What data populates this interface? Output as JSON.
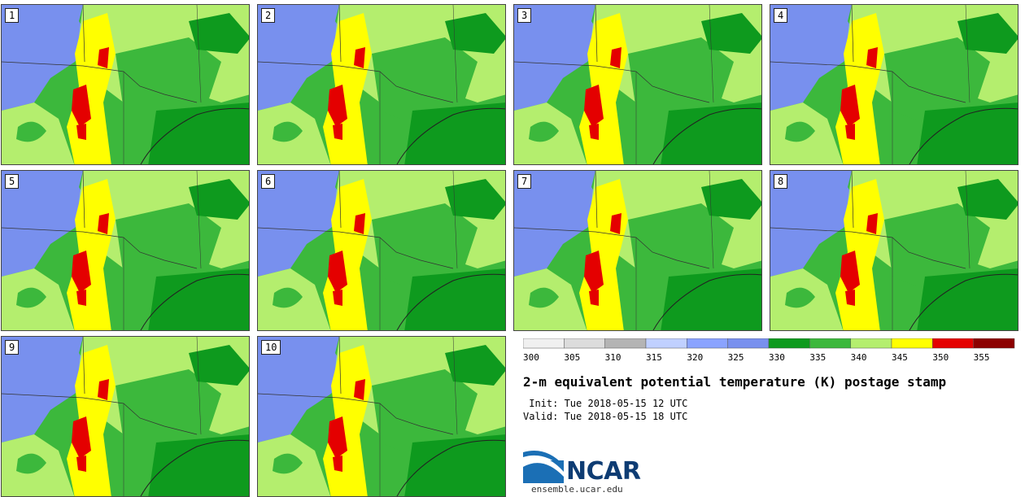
{
  "panels": [
    {
      "label": "1"
    },
    {
      "label": "2"
    },
    {
      "label": "3"
    },
    {
      "label": "4"
    },
    {
      "label": "5"
    },
    {
      "label": "6"
    },
    {
      "label": "7"
    },
    {
      "label": "8"
    },
    {
      "label": "9"
    },
    {
      "label": "10"
    }
  ],
  "colorbar": {
    "ticks": [
      "300",
      "305",
      "310",
      "315",
      "320",
      "325",
      "330",
      "335",
      "340",
      "345",
      "350",
      "355"
    ],
    "colors": [
      "#f0f0f0",
      "#dcdcdc",
      "#b4b4b4",
      "#c0d0ff",
      "#8aa3ff",
      "#7890ee",
      "#0e9a1e",
      "#3cb83c",
      "#b4ee6e",
      "#ffff00",
      "#e40000",
      "#8c0000"
    ]
  },
  "title": "2-m equivalent potential temperature (K) postage stamp",
  "init": " Init: Tue 2018-05-15 12 UTC",
  "valid": "Valid: Tue 2018-05-15 18 UTC",
  "logo": {
    "text": "NCAR",
    "url": "ensemble.ucar.edu"
  },
  "colors": {
    "dry": "#7890ee",
    "moist_dark": "#0e9a1e",
    "moist_mid": "#3cb83c",
    "moist_light": "#b4ee6e",
    "warm": "#ffff00",
    "hot": "#e40000"
  }
}
